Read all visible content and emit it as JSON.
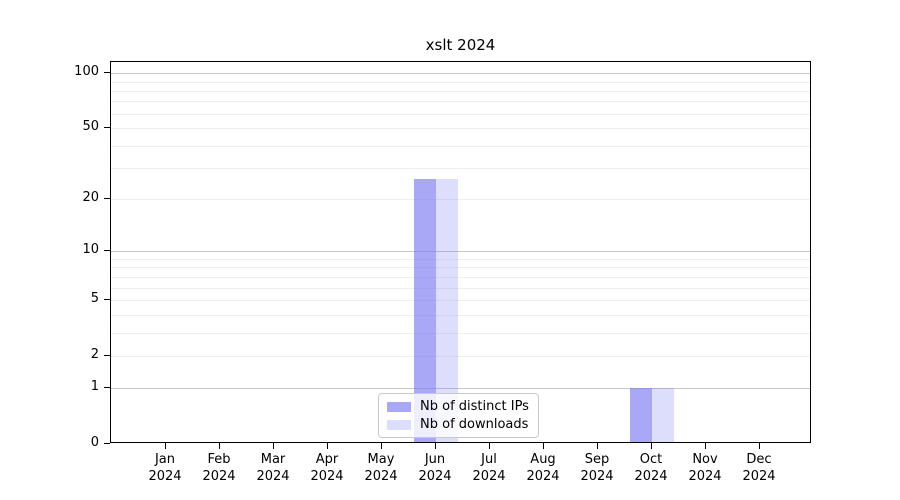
{
  "chart_data": {
    "type": "bar",
    "title": "xslt 2024",
    "categories": [
      "Jan 2024",
      "Feb 2024",
      "Mar 2024",
      "Apr 2024",
      "May 2024",
      "Jun 2024",
      "Jul 2024",
      "Aug 2024",
      "Sep 2024",
      "Oct 2024",
      "Nov 2024",
      "Dec 2024"
    ],
    "series": [
      {
        "name": "Nb of distinct IPs",
        "color": "rgba(121,121,243,0.65)",
        "legend_color": "#a8a8f7",
        "values": [
          0,
          0,
          0,
          0,
          0,
          26,
          0,
          0,
          0,
          1,
          0,
          0
        ]
      },
      {
        "name": "Nb of downloads",
        "color": "rgba(121,121,243,0.25)",
        "legend_color": "#ddddfc",
        "values": [
          0,
          0,
          0,
          0,
          0,
          26,
          0,
          0,
          0,
          1,
          0,
          0
        ]
      }
    ],
    "xlabel": "",
    "ylabel": "",
    "y_axis": {
      "scale": "log1p",
      "ticks": [
        0,
        1,
        2,
        5,
        10,
        20,
        50,
        100
      ],
      "max": 115,
      "major_gridlines": [
        1,
        10,
        100
      ],
      "minor_gridlines": [
        2,
        3,
        4,
        5,
        6,
        7,
        8,
        9,
        20,
        30,
        40,
        50,
        60,
        70,
        80,
        90
      ]
    },
    "grid": true,
    "legend_position": "lower center (inside plot)"
  },
  "colors": {
    "background": "#ffffff",
    "spine": "#000000",
    "major_grid": "#c6c6c6",
    "minor_grid": "#efefef",
    "text": "#000000"
  }
}
